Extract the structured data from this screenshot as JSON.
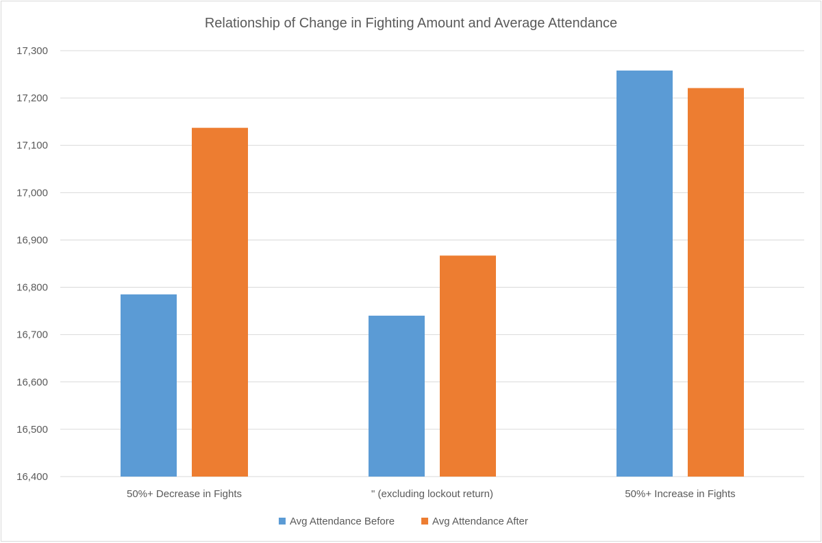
{
  "chart_data": {
    "type": "bar",
    "title": "Relationship of Change in Fighting Amount  and Average Attendance",
    "xlabel": "",
    "ylabel": "",
    "categories": [
      "50%+ Decrease in Fights",
      "\" (excluding lockout return)",
      "50%+ Increase in Fights"
    ],
    "series": [
      {
        "name": "Avg Attendance Before",
        "color": "#5B9BD5",
        "values": [
          16785,
          16740,
          17258
        ]
      },
      {
        "name": "Avg Attendance After",
        "color": "#ED7D31",
        "values": [
          17137,
          16867,
          17221
        ]
      }
    ],
    "ylim": [
      16400,
      17300
    ],
    "yticks": [
      16400,
      16500,
      16600,
      16700,
      16800,
      16900,
      17000,
      17100,
      17200,
      17300
    ],
    "ytick_labels": [
      "16,400",
      "16,500",
      "16,600",
      "16,700",
      "16,800",
      "16,900",
      "17,000",
      "17,100",
      "17,200",
      "17,300"
    ],
    "grid": true,
    "legend_position": "bottom"
  }
}
